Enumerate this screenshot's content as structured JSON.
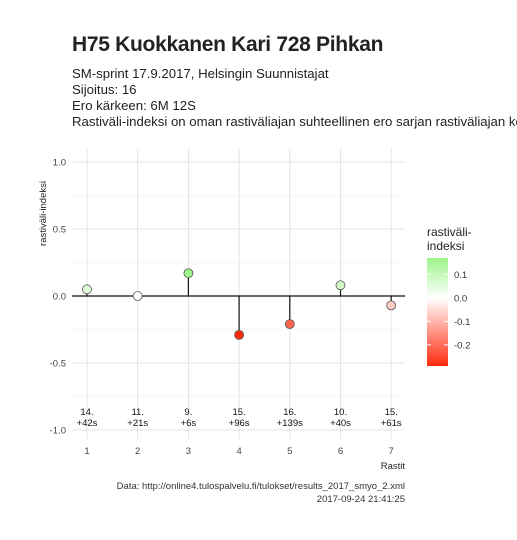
{
  "header": {
    "title": "H75 Kuokkanen Kari 728 Pihkan",
    "subtitle_lines": [
      "SM-sprint 17.9.2017, Helsingin Suunnistajat",
      "Sijoitus: 16",
      "Ero kärkeen: 6M 12S",
      "Rastiväli-indeksi on oman rastiväliajan suhteellinen ero sarjan rastiväliajan kes"
    ]
  },
  "caption": {
    "source": "Data: http://online4.tulospalvelu.fi/tulokset/results_2017_smyo_2.xml",
    "timestamp": "2017-09-24 21:41:25"
  },
  "chart_data": {
    "type": "scatter",
    "subtype": "lollipop",
    "xlabel": "Rastit",
    "ylabel": "rastiväli-indeksi",
    "x": [
      1,
      2,
      3,
      4,
      5,
      6,
      7
    ],
    "y": [
      0.05,
      0.0,
      0.17,
      -0.29,
      -0.21,
      0.08,
      -0.07
    ],
    "point_labels": [
      [
        "14.",
        "+42s"
      ],
      [
        "11.",
        "+21s"
      ],
      [
        "9.",
        "+6s"
      ],
      [
        "15.",
        "+96s"
      ],
      [
        "16.",
        "+139s"
      ],
      [
        "10.",
        "+40s"
      ],
      [
        "15.",
        "+61s"
      ]
    ],
    "x_ticks": [
      "1",
      "2",
      "3",
      "4",
      "5",
      "6",
      "7"
    ],
    "y_ticks": [
      1.0,
      0.5,
      0.0,
      -0.5,
      -1.0
    ],
    "y_tick_labels": [
      "1.0",
      "0.5",
      "0.0",
      "-0.5",
      "-1.0"
    ],
    "ylim": [
      -1.0,
      1.0
    ],
    "grid": true,
    "legend": {
      "title_lines": [
        "rastiväli-",
        "indeksi"
      ],
      "position": "right",
      "ticks": [
        0.1,
        0.0,
        -0.1,
        -0.2
      ],
      "tick_labels": [
        "0.1",
        "0.0",
        "-0.1",
        "-0.2"
      ],
      "range": [
        -0.29,
        0.17
      ],
      "colors": {
        "high": "#9ef58a",
        "mid": "#ffffff",
        "low": "#ff2a0e"
      }
    }
  }
}
